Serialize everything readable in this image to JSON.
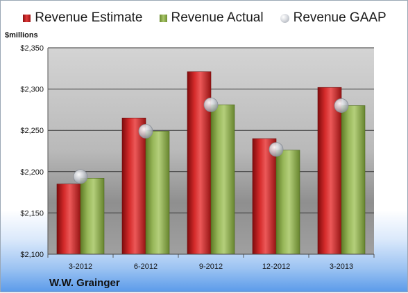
{
  "chart_data": {
    "type": "bar",
    "title": "",
    "ylabel": "$millions",
    "footer_label": "W.W. Grainger",
    "categories": [
      "3-2012",
      "6-2012",
      "9-2012",
      "12-2012",
      "3-2013"
    ],
    "ylim": [
      2100,
      2350
    ],
    "yticks": [
      2100,
      2150,
      2200,
      2250,
      2300,
      2350
    ],
    "ytick_labels": [
      "$2,100",
      "$2,150",
      "$2,200",
      "$2,250",
      "$2,300",
      "$2,350"
    ],
    "grid": true,
    "legend_position": "top",
    "series": [
      {
        "name": "Revenue Estimate",
        "kind": "bar",
        "color": "#d42a2a",
        "values": [
          2185,
          2265,
          2321,
          2240,
          2302
        ]
      },
      {
        "name": "Revenue Actual",
        "kind": "bar",
        "color": "#9bbb59",
        "values": [
          2192,
          2249,
          2281,
          2226,
          2280
        ]
      },
      {
        "name": "Revenue GAAP",
        "kind": "marker",
        "color": "#c0c4cc",
        "values": [
          2194,
          2249,
          2281,
          2227,
          2280
        ]
      }
    ]
  }
}
